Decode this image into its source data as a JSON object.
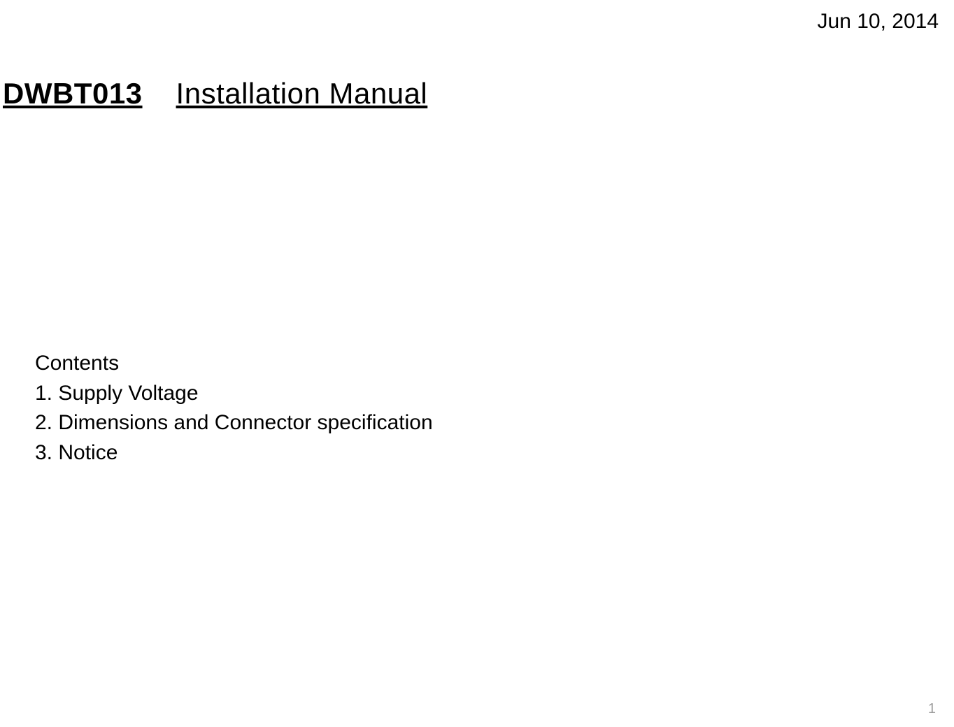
{
  "header": {
    "date": "Jun 10, 2014"
  },
  "title": {
    "model": "DWBT013",
    "rest": "Installation  Manual"
  },
  "contents": {
    "heading": "Contents",
    "items": [
      "1. Supply Voltage",
      "2. Dimensions and Connector specification",
      "3. Notice"
    ]
  },
  "footer": {
    "page_number": "1"
  },
  "style": {
    "background_color": "#ffffff",
    "text_color": "#000000",
    "page_number_color": "#9c9c9c",
    "date_fontsize": 30,
    "title_fontsize": 42,
    "contents_fontsize": 30,
    "page_number_fontsize": 20,
    "font_family": "Arial"
  }
}
